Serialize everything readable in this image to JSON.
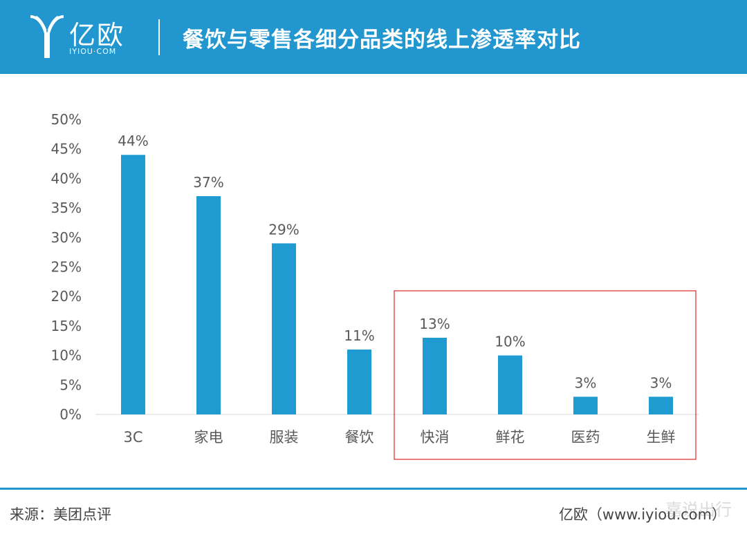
{
  "header": {
    "logo_name": "亿欧",
    "logo_domain": "IYIOU·COM",
    "title": "餐饮与零售各细分品类的线上渗透率对比"
  },
  "chart_data": {
    "type": "bar",
    "categories": [
      "3C",
      "家电",
      "服装",
      "餐饮",
      "快消",
      "鲜花",
      "医药",
      "生鲜"
    ],
    "values": [
      44,
      37,
      29,
      11,
      13,
      10,
      3,
      3
    ],
    "data_labels": [
      "44%",
      "37%",
      "29%",
      "11%",
      "13%",
      "10%",
      "3%",
      "3%"
    ],
    "ylim": [
      0,
      50
    ],
    "yticks": [
      "0%",
      "5%",
      "10%",
      "15%",
      "20%",
      "25%",
      "30%",
      "35%",
      "40%",
      "45%",
      "50%"
    ],
    "ytick_values": [
      0,
      5,
      10,
      15,
      20,
      25,
      30,
      35,
      40,
      45,
      50
    ],
    "grid": false,
    "highlight_categories": [
      "快消",
      "鲜花",
      "医药",
      "生鲜"
    ],
    "bar_color": "#1f9bd1",
    "highlight_box_color": "#e0373a"
  },
  "footer": {
    "source": "来源：美团点评",
    "credit": "亿欧（www.iyiou.com）",
    "watermark": "嘉说出行"
  },
  "colors": {
    "header_bg": "#2196cf",
    "text": "#595959"
  }
}
